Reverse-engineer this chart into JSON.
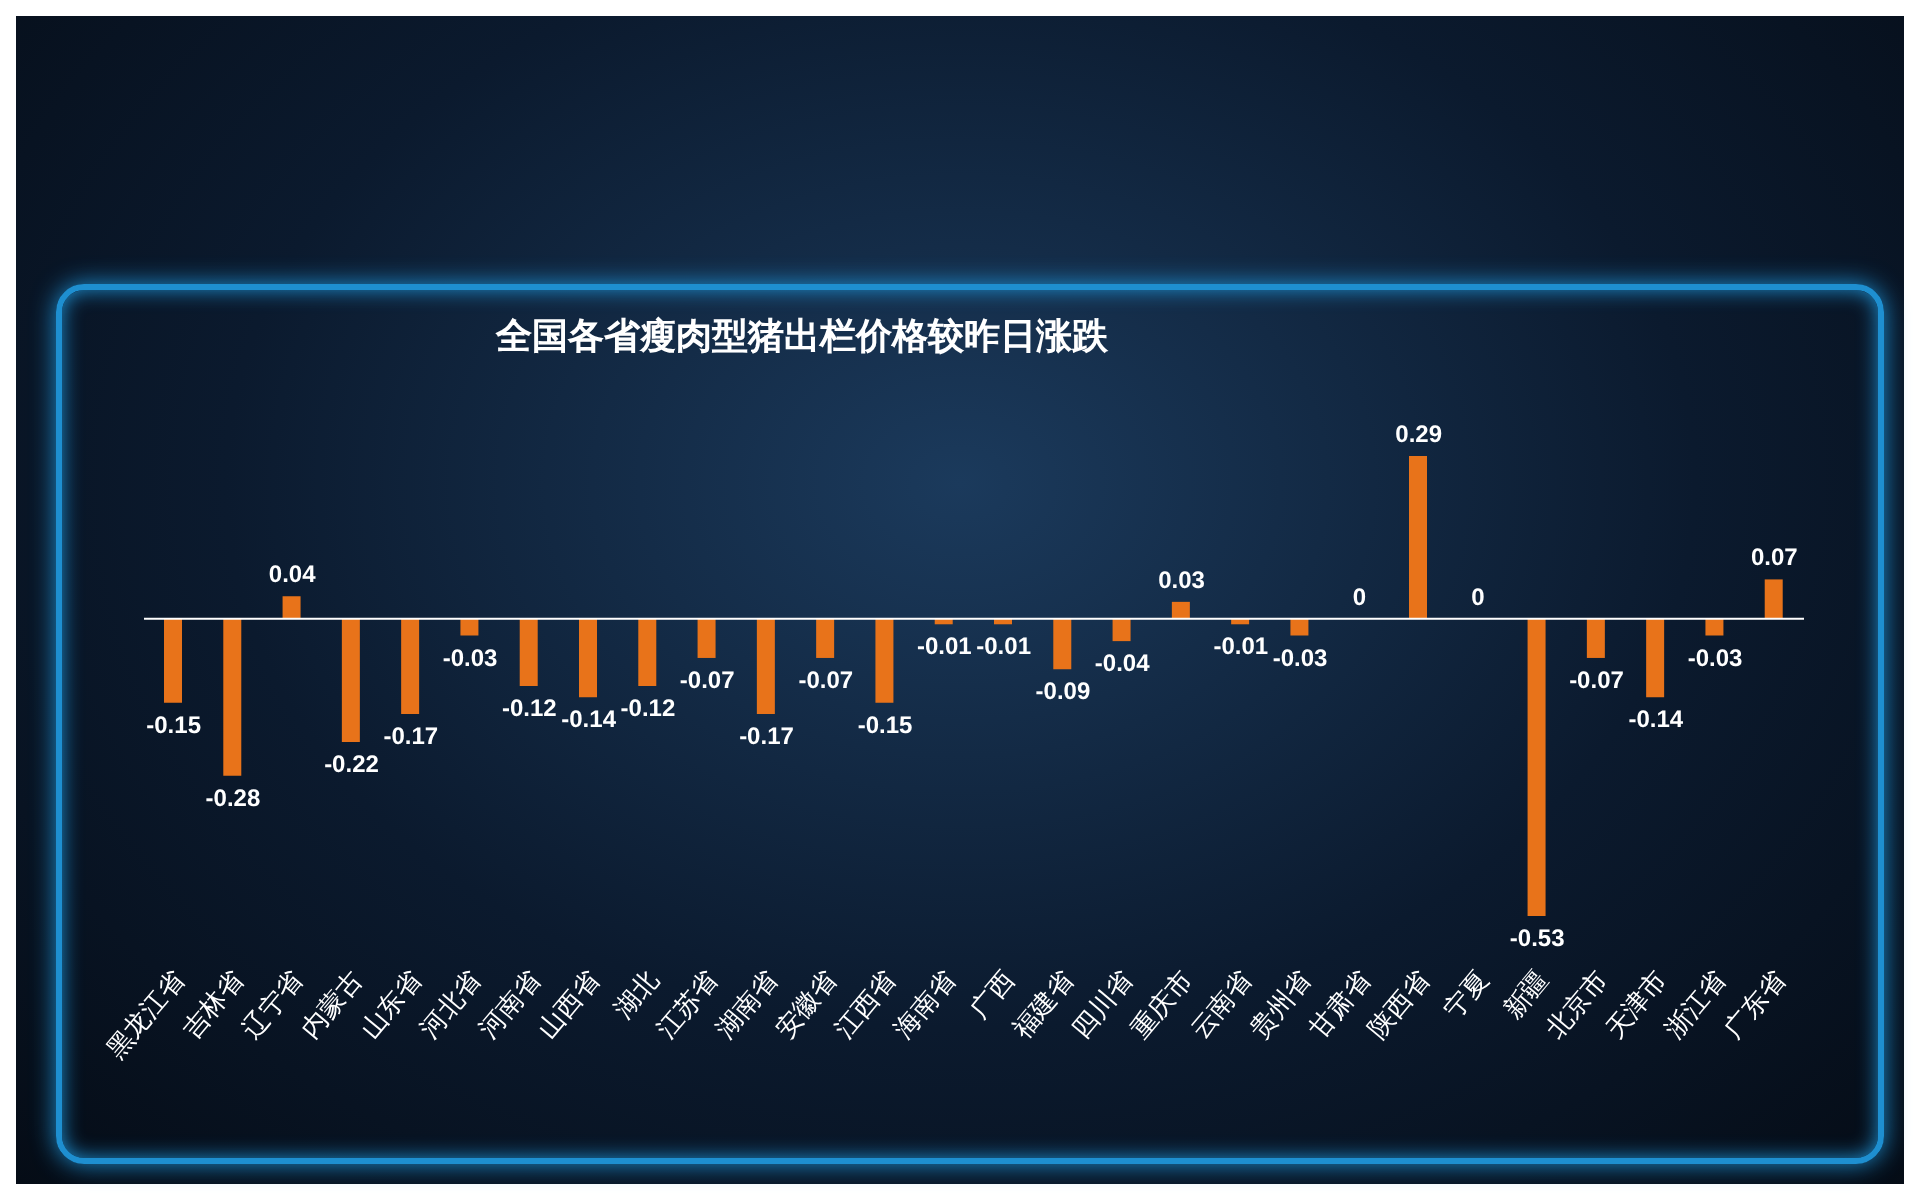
{
  "chart_data": {
    "type": "bar",
    "title": "全国各省瘦肉型猪出栏价格较昨日涨跌",
    "categories": [
      "黑龙江省",
      "吉林省",
      "辽宁省",
      "内蒙古",
      "山东省",
      "河北省",
      "河南省",
      "山西省",
      "湖北",
      "江苏省",
      "湖南省",
      "安徽省",
      "江西省",
      "海南省",
      "广西",
      "福建省",
      "四川省",
      "重庆市",
      "云南省",
      "贵州省",
      "甘肃省",
      "陕西省",
      "宁夏",
      "新疆",
      "北京市",
      "天津市",
      "浙江省",
      "广东省"
    ],
    "values": [
      -0.15,
      -0.28,
      0.04,
      -0.22,
      -0.17,
      -0.03,
      -0.12,
      -0.14,
      -0.12,
      -0.07,
      -0.17,
      -0.07,
      -0.15,
      -0.01,
      -0.01,
      -0.09,
      -0.04,
      0.03,
      -0.01,
      -0.03,
      0,
      0.29,
      0,
      -0.53,
      -0.07,
      -0.14,
      -0.03,
      0.07
    ],
    "color": "#e8731a",
    "data_labels": true,
    "grid": false,
    "legend": false
  }
}
